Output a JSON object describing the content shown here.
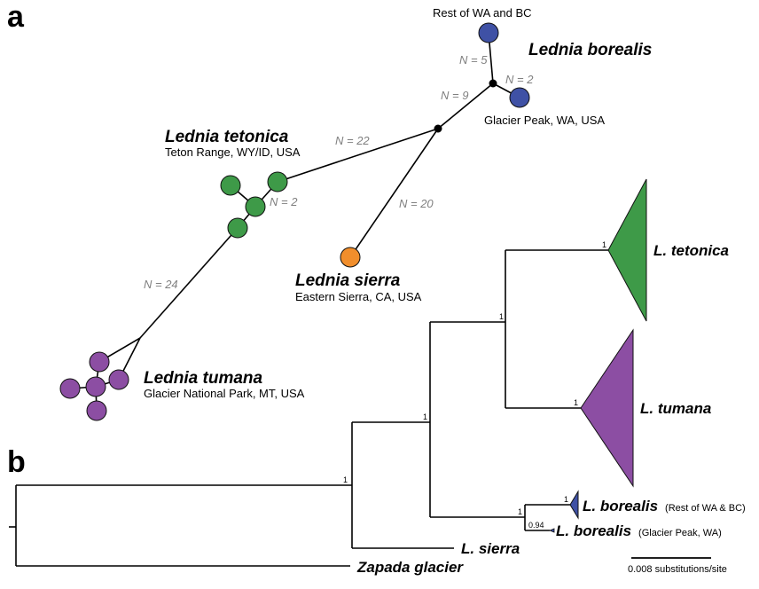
{
  "panel_a": {
    "label": "a",
    "borealis": {
      "name": "Lednia borealis",
      "rest": "Rest of WA and BC",
      "glacier": "Glacier Peak, WA, USA",
      "n_rest": "N = 5",
      "n_glacier": "N = 2",
      "n_stem": "N = 9"
    },
    "tetonica": {
      "name": "Lednia tetonica",
      "location": "Teton Range, WY/ID, USA",
      "n_stem": "N = 22",
      "n_small": "N = 2"
    },
    "sierra": {
      "name": "Lednia sierra",
      "location": "Eastern Sierra, CA, USA",
      "n_stem": "N = 20"
    },
    "tumana": {
      "name": "Lednia tumana",
      "location": "Glacier National Park, MT, USA",
      "n_stem": "N = 24"
    },
    "colors": {
      "borealis": "#3f51a5",
      "tetonica": "#3e9a48",
      "sierra": "#f18e2c",
      "tumana": "#8c4ea3"
    }
  },
  "panel_b": {
    "label": "b",
    "tetonica": "L. tetonica",
    "tumana": "L. tumana",
    "borealis_rest": "L. borealis",
    "borealis_rest_paren": "(Rest of WA & BC)",
    "borealis_glacier": "L. borealis",
    "borealis_glacier_paren": "(Glacier Peak, WA)",
    "sierra": "L. sierra",
    "zapada": "Zapada glacier",
    "support": {
      "root": "1",
      "ingroup": "1",
      "tet_tum": "1",
      "tetonica": "1",
      "tumana": "1",
      "borealis": "1",
      "borealis_rest": "1",
      "borealis_glacier": "0.94"
    },
    "scale_label": "0.008 substitutions/site"
  }
}
